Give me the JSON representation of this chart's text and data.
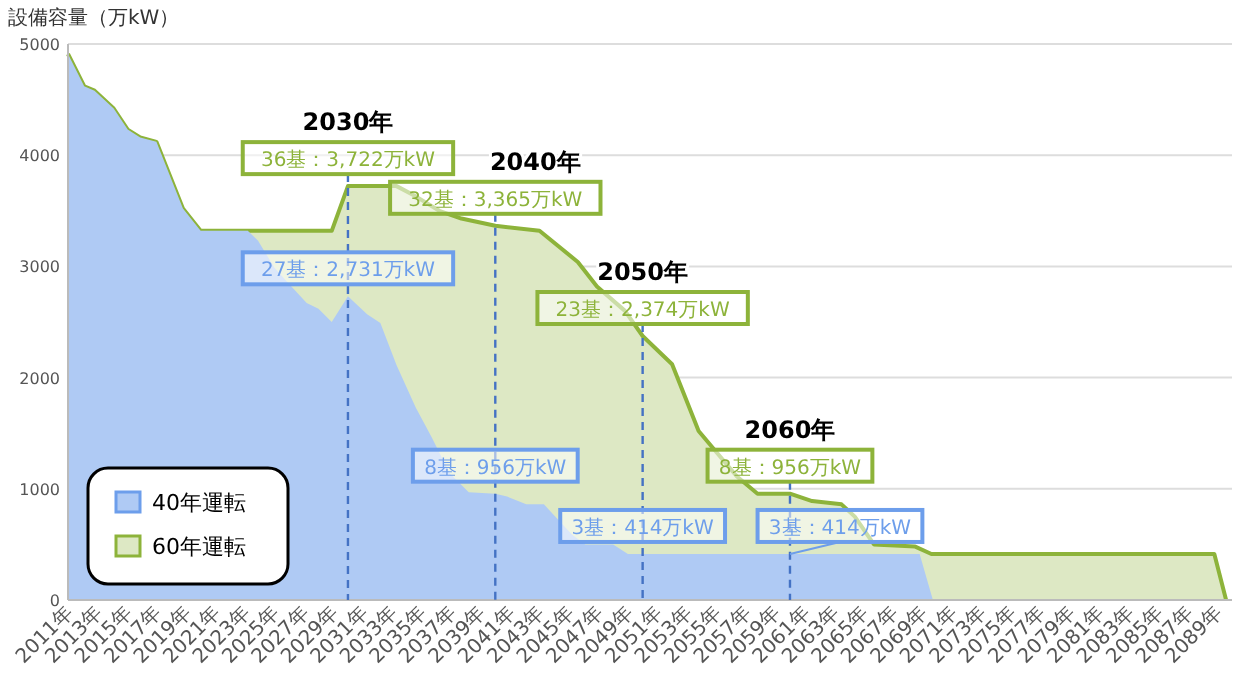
{
  "chart_data": {
    "type": "area",
    "ylabel": "設備容量（万kW）",
    "xlim": [
      2011,
      2090
    ],
    "ylim": [
      0,
      5000
    ],
    "yticks": [
      0,
      1000,
      2000,
      3000,
      4000,
      5000
    ],
    "grid": "y",
    "legend": "bottom left",
    "xticks": [
      {
        "value": 2011,
        "label": "2011年"
      },
      {
        "value": 2013,
        "label": "2013年"
      },
      {
        "value": 2015,
        "label": "2015年"
      },
      {
        "value": 2017,
        "label": "2017年"
      },
      {
        "value": 2019,
        "label": "2019年"
      },
      {
        "value": 2021,
        "label": "2021年"
      },
      {
        "value": 2023,
        "label": "2023年"
      },
      {
        "value": 2025,
        "label": "2025年"
      },
      {
        "value": 2027,
        "label": "2027年"
      },
      {
        "value": 2029,
        "label": "2029年"
      },
      {
        "value": 2031,
        "label": "2031年"
      },
      {
        "value": 2033,
        "label": "2033年"
      },
      {
        "value": 2035,
        "label": "2035年"
      },
      {
        "value": 2037,
        "label": "2037年"
      },
      {
        "value": 2039,
        "label": "2039年"
      },
      {
        "value": 2041,
        "label": "2041年"
      },
      {
        "value": 2043,
        "label": "2043年"
      },
      {
        "value": 2045,
        "label": "2045年"
      },
      {
        "value": 2047,
        "label": "2047年"
      },
      {
        "value": 2049,
        "label": "2049年"
      },
      {
        "value": 2051,
        "label": "2051年"
      },
      {
        "value": 2053,
        "label": "2053年"
      },
      {
        "value": 2055,
        "label": "2055年"
      },
      {
        "value": 2057,
        "label": "2057年"
      },
      {
        "value": 2059,
        "label": "2059年"
      },
      {
        "value": 2061,
        "label": "2061年"
      },
      {
        "value": 2063,
        "label": "2063年"
      },
      {
        "value": 2065,
        "label": "2065年"
      },
      {
        "value": 2067,
        "label": "2067年"
      },
      {
        "value": 2069,
        "label": "2069年"
      },
      {
        "value": 2071,
        "label": "2071年"
      },
      {
        "value": 2073,
        "label": "2073年"
      },
      {
        "value": 2075,
        "label": "2075年"
      },
      {
        "value": 2077,
        "label": "2077年"
      },
      {
        "value": 2079,
        "label": "2079年"
      },
      {
        "value": 2081,
        "label": "2081年"
      },
      {
        "value": 2083,
        "label": "2083年"
      },
      {
        "value": 2085,
        "label": "2085年"
      },
      {
        "value": 2087,
        "label": "2087年"
      },
      {
        "value": 2089,
        "label": "2089年"
      }
    ],
    "series": [
      {
        "name": "60年運転",
        "color": "#8db33a",
        "x": [
          2011,
          2012.1,
          2012.8,
          2014.1,
          2015.05,
          2015.9,
          2017,
          2018.8,
          2020,
          2028.9,
          2030,
          2033.3,
          2034.6,
          2036.2,
          2037.7,
          2040,
          2043,
          2045.6,
          2046.9,
          2048.8,
          2050,
          2052,
          2053.8,
          2056.4,
          2057.8,
          2060,
          2061.5,
          2063.5,
          2064.4,
          2065.7,
          2068.5,
          2069.6,
          2088.8,
          2089.6
        ],
        "values": [
          4910,
          4620,
          4580,
          4420,
          4230,
          4160,
          4120,
          3520,
          3320,
          3320,
          3722,
          3722,
          3630,
          3500,
          3430,
          3365,
          3320,
          3040,
          2820,
          2600,
          2374,
          2120,
          1520,
          1110,
          956,
          956,
          890,
          860,
          750,
          500,
          480,
          414,
          414,
          0
        ]
      },
      {
        "name": "40年運転",
        "color": "#6d9eeb",
        "x": [
          2011,
          2012.1,
          2012.8,
          2014.1,
          2015.05,
          2015.9,
          2017,
          2018.8,
          2020,
          2023.2,
          2023.9,
          2025,
          2025.8,
          2027.2,
          2028,
          2028.9,
          2030,
          2031.3,
          2032.2,
          2033.3,
          2034.6,
          2035.7,
          2036.9,
          2038.2,
          2040,
          2040.8,
          2042.1,
          2043.3,
          2045.2,
          2046.1,
          2048,
          2049,
          2050,
          2060,
          2068.8,
          2069.7
        ],
        "values": [
          4910,
          4620,
          4580,
          4420,
          4230,
          4160,
          4120,
          3520,
          3320,
          3320,
          3230,
          2990,
          2870,
          2670,
          2620,
          2500,
          2731,
          2570,
          2490,
          2110,
          1730,
          1460,
          1140,
          970,
          956,
          930,
          860,
          860,
          590,
          500,
          500,
          414,
          414,
          414,
          414,
          0
        ]
      }
    ],
    "ref_lines": [
      {
        "axis": "x",
        "value": 2030,
        "label": "2030年",
        "color": "#4472c4",
        "line_style": "dashed"
      },
      {
        "axis": "x",
        "value": 2040,
        "label": "2040年",
        "color": "#4472c4",
        "line_style": "dashed"
      },
      {
        "axis": "x",
        "value": 2050,
        "label": "2050年",
        "color": "#4472c4",
        "line_style": "dashed"
      },
      {
        "axis": "x",
        "value": 2060,
        "label": "2060年",
        "color": "#4472c4",
        "line_style": "dashed"
      }
    ],
    "annotations": [
      {
        "text": "36基：3,722万kW",
        "x": 2030,
        "y": 3722
      },
      {
        "text": "27基：2,731万kW",
        "x": 2030,
        "y": 2731
      },
      {
        "text": "32基：3,365万kW",
        "x": 2040,
        "y": 3365
      },
      {
        "text": "8基：956万kW",
        "x": 2040,
        "y": 956
      },
      {
        "text": "23基：2,374万kW",
        "x": 2050,
        "y": 2374
      },
      {
        "text": "3基：414万kW",
        "x": 2050,
        "y": 414
      },
      {
        "text": "8基：956万kW",
        "x": 2060,
        "y": 956
      },
      {
        "text": "3基：414万kW",
        "x": 2060,
        "y": 414
      }
    ]
  }
}
